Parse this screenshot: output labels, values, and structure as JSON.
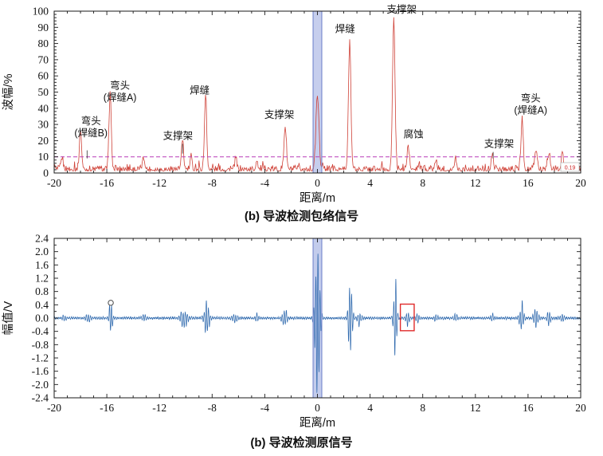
{
  "figure": {
    "caption_top": "(b) 导波检测包络信号",
    "caption_bottom": "(b) 导波检测原信号"
  },
  "chart_data": [
    {
      "type": "line",
      "name": "guided-wave-envelope",
      "xlabel": "距离/m",
      "ylabel": "波幅/%",
      "xlim": [
        -20,
        20
      ],
      "ylim": [
        0,
        100
      ],
      "xticks": [
        -20,
        -16,
        -12,
        -8,
        -4,
        0,
        4,
        8,
        12,
        16,
        20
      ],
      "yticks": [
        0,
        10,
        20,
        30,
        40,
        50,
        60,
        70,
        80,
        90,
        100
      ],
      "xminor": 1,
      "yminor": 2,
      "ytick_decimals": 0,
      "grid": false,
      "legend": null,
      "line_color": "#cf4238",
      "threshold": {
        "y": 10,
        "color": "#b83cb8",
        "style": "dashed"
      },
      "dead_zone": {
        "x0": -0.33,
        "x1": 0.33,
        "fill": "#bcc6ea",
        "edge": "#7d8ed0"
      },
      "corner_note": "0.19",
      "peaks": [
        {
          "x": -18.0,
          "h": 24,
          "w": 0.12,
          "label": "弯头(焊缝B)"
        },
        {
          "x": -15.75,
          "h": 45,
          "w": 0.12,
          "label": "弯头(焊缝A)"
        },
        {
          "x": -10.25,
          "h": 16,
          "w": 0.12,
          "label": "支撑架"
        },
        {
          "x": -8.5,
          "h": 45,
          "w": 0.12,
          "label": "焊缝"
        },
        {
          "x": -2.45,
          "h": 27,
          "w": 0.13,
          "label": "支撑架"
        },
        {
          "x": 0.0,
          "h": 46,
          "w": 0.16
        },
        {
          "x": 2.45,
          "h": 80,
          "w": 0.13,
          "label": "焊缝"
        },
        {
          "x": 5.8,
          "h": 95,
          "w": 0.13,
          "label": "支撑架"
        },
        {
          "x": 6.9,
          "h": 14,
          "w": 0.12,
          "label": "腐蚀"
        },
        {
          "x": 13.3,
          "h": 11,
          "w": 0.1,
          "label": "支撑架"
        },
        {
          "x": 15.55,
          "h": 31,
          "w": 0.12,
          "label": "弯头(焊缝A)"
        }
      ],
      "minor_bumps": [
        {
          "x": -19.4,
          "h": 7,
          "w": 0.12
        },
        {
          "x": -13.2,
          "h": 7,
          "w": 0.12
        },
        {
          "x": -9.6,
          "h": 8,
          "w": 0.1
        },
        {
          "x": -6.2,
          "h": 7,
          "w": 0.1
        },
        {
          "x": -4.6,
          "h": 6,
          "w": 0.1
        },
        {
          "x": 9.0,
          "h": 6,
          "w": 0.1
        },
        {
          "x": 10.5,
          "h": 7,
          "w": 0.1
        },
        {
          "x": 16.6,
          "h": 12,
          "w": 0.14
        },
        {
          "x": 17.6,
          "h": 10,
          "w": 0.12
        },
        {
          "x": 18.6,
          "h": 9,
          "w": 0.12
        }
      ],
      "annotations": [
        {
          "lines": [
            "弯头",
            "(焊缝B)"
          ],
          "x": -17.2,
          "y": 30,
          "leader": {
            "x": -17.5,
            "y1": 14,
            "y2": 9
          }
        },
        {
          "lines": [
            "弯头",
            "(焊缝A)"
          ],
          "x": -15.0,
          "y": 52
        },
        {
          "lines": [
            "支撑架"
          ],
          "x": -10.6,
          "y": 21,
          "leader": {
            "x": -10.25,
            "y1": 18,
            "y2": 12
          }
        },
        {
          "lines": [
            "焊缝"
          ],
          "x": -8.95,
          "y": 49
        },
        {
          "lines": [
            "支撑架"
          ],
          "x": -2.9,
          "y": 34
        },
        {
          "lines": [
            "焊缝"
          ],
          "x": 2.1,
          "y": 87
        },
        {
          "lines": [
            "支撑架"
          ],
          "x": 6.4,
          "y": 99
        },
        {
          "lines": [
            "腐蚀"
          ],
          "x": 7.3,
          "y": 22
        },
        {
          "lines": [
            "支撑架"
          ],
          "x": 13.8,
          "y": 16,
          "leader": {
            "x": 13.35,
            "y1": 13,
            "y2": 9
          }
        },
        {
          "lines": [
            "弯头",
            "(焊缝A)"
          ],
          "x": 16.2,
          "y": 44
        }
      ]
    },
    {
      "type": "line",
      "name": "guided-wave-raw",
      "xlabel": "距离/m",
      "ylabel": "幅值/V",
      "xlim": [
        -20,
        20
      ],
      "ylim": [
        -2.4,
        2.4
      ],
      "xticks": [
        -20,
        -16,
        -12,
        -8,
        -4,
        0,
        4,
        8,
        12,
        16,
        20
      ],
      "yticks": [
        -2.4,
        -2.0,
        -1.6,
        -1.2,
        -0.8,
        -0.4,
        0.0,
        0.4,
        0.8,
        1.2,
        1.6,
        2.0,
        2.4
      ],
      "xminor": 1,
      "yminor": 0.2,
      "ytick_decimals": 1,
      "grid": false,
      "legend": null,
      "line_color": "#2a66ac",
      "dead_zone": {
        "x0": -0.33,
        "x1": 0.33,
        "fill": "#bcc6ea",
        "edge": "#7d8ed0"
      },
      "noise_base": 0.05,
      "bursts": [
        {
          "x": -19.2,
          "a": 0.1,
          "w": 0.15
        },
        {
          "x": -17.4,
          "a": 0.16,
          "w": 0.18
        },
        {
          "x": -15.7,
          "a": 0.55,
          "w": 0.15
        },
        {
          "x": -13.2,
          "a": 0.12,
          "w": 0.15
        },
        {
          "x": -10.1,
          "a": 0.35,
          "w": 0.3
        },
        {
          "x": -8.4,
          "a": 0.75,
          "w": 0.2
        },
        {
          "x": -6.3,
          "a": 0.15,
          "w": 0.2
        },
        {
          "x": -4.6,
          "a": 0.12,
          "w": 0.15
        },
        {
          "x": -2.5,
          "a": 0.4,
          "w": 0.2
        },
        {
          "x": 0.0,
          "a": 2.7,
          "w": 0.2
        },
        {
          "x": 2.5,
          "a": 1.45,
          "w": 0.16
        },
        {
          "x": 3.2,
          "a": 0.28,
          "w": 0.15
        },
        {
          "x": 5.9,
          "a": 1.7,
          "w": 0.13
        },
        {
          "x": 6.85,
          "a": 0.3,
          "w": 0.15
        },
        {
          "x": 7.6,
          "a": 0.2,
          "w": 0.12
        },
        {
          "x": 9.0,
          "a": 0.12,
          "w": 0.15
        },
        {
          "x": 10.5,
          "a": 0.12,
          "w": 0.15
        },
        {
          "x": 13.3,
          "a": 0.15,
          "w": 0.15
        },
        {
          "x": 15.5,
          "a": 0.6,
          "w": 0.16
        },
        {
          "x": 16.6,
          "a": 0.3,
          "w": 0.2
        },
        {
          "x": 17.6,
          "a": 0.24,
          "w": 0.15
        },
        {
          "x": 18.6,
          "a": 0.14,
          "w": 0.15
        }
      ],
      "marker": {
        "x": -15.7,
        "y": 0.46,
        "shape": "circle"
      },
      "highlight_box": {
        "x0": 6.3,
        "x1": 7.35,
        "y0": -0.38,
        "y1": 0.42,
        "color": "#e02b2b"
      }
    }
  ]
}
